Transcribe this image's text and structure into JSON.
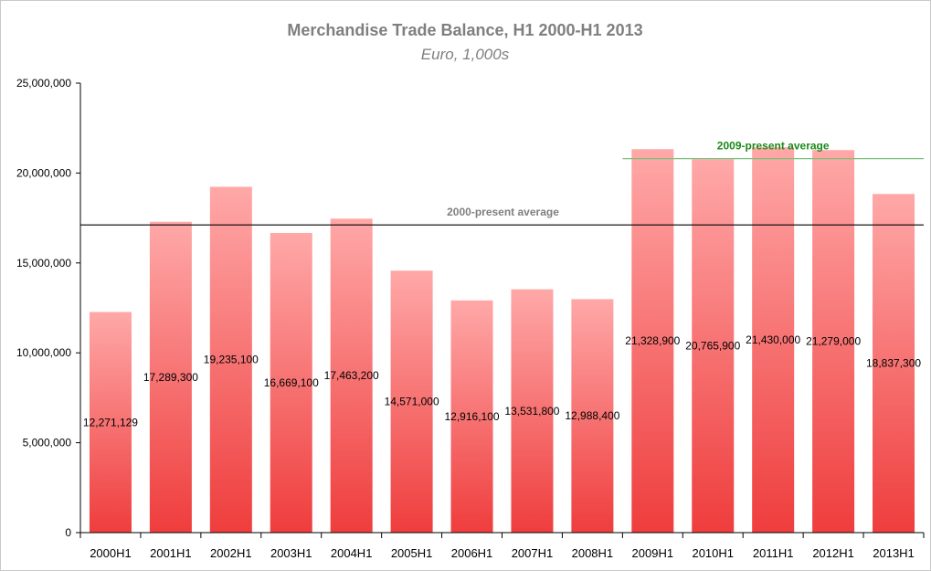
{
  "chart_data": {
    "type": "bar",
    "title": "Merchandise Trade Balance, H1 2000-H1 2013",
    "subtitle": "Euro, 1,000s",
    "xlabel": "",
    "ylabel": "",
    "ylim": [
      0,
      25000000
    ],
    "yticks": [
      0,
      5000000,
      10000000,
      15000000,
      20000000,
      25000000
    ],
    "ytick_labels": [
      "0",
      "5,000,000",
      "10,000,000",
      "15,000,000",
      "20,000,000",
      "25,000,000"
    ],
    "grid": false,
    "categories": [
      "2000H1",
      "2001H1",
      "2002H1",
      "2003H1",
      "2004H1",
      "2005H1",
      "2006H1",
      "2007H1",
      "2008H1",
      "2009H1",
      "2010H1",
      "2011H1",
      "2012H1",
      "2013H1"
    ],
    "values": [
      12271129,
      17289300,
      19235100,
      16669100,
      17463200,
      14571000,
      12916100,
      13531800,
      12988400,
      21328900,
      20765900,
      21430000,
      21279000,
      18837300
    ],
    "data_labels": [
      "12,271,129",
      "17,289,300",
      "19,235,100",
      "16,669,100",
      "17,463,200",
      "14,571,000",
      "12,916,100",
      "13,531,800",
      "12,988,400",
      "21,328,900",
      "20,765,900",
      "21,430,000",
      "21,279,000",
      "18,837,300"
    ],
    "reference_lines": [
      {
        "name": "2000-present average",
        "value": 17114400,
        "start_category": "2000H1",
        "color": "#000000",
        "label_color": "#7f7f7f"
      },
      {
        "name": "2009-present average",
        "value": 20800000,
        "start_category": "2009H1",
        "color": "#7cc27c",
        "label_color": "#1a8a1a"
      }
    ],
    "colors": {
      "bar_top": "#ffa8a8",
      "bar_bottom": "#ef3d3d",
      "axis": "#000000"
    }
  }
}
